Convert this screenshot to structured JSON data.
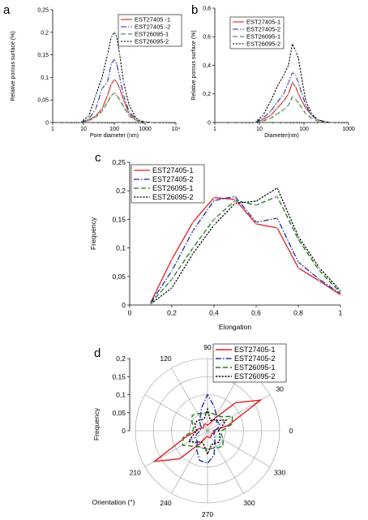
{
  "colors": {
    "s1": "#e02020",
    "s2": "#1f2fb0",
    "s3": "#1e7a1e",
    "s4": "#000000"
  },
  "panels": {
    "a": "a",
    "b": "b",
    "c": "c",
    "d": "d"
  },
  "chart_data": [
    {
      "id": "a",
      "type": "line",
      "xscale": "log",
      "xlabel": "Pore diameter (nm)",
      "ylabel": "Relative porous surface (%)",
      "xlim": [
        1,
        10000
      ],
      "ylim": [
        0,
        0.25
      ],
      "xticks": [
        "1",
        "10",
        "100",
        "1000",
        "10⁴"
      ],
      "yticks": [
        "0",
        "0,05",
        "0,1",
        "0,15",
        "0,2",
        "0,25"
      ],
      "series": [
        {
          "name": "EST27405 -1",
          "x": [
            8,
            15,
            25,
            40,
            60,
            80,
            100,
            120,
            150,
            200,
            300,
            500,
            700,
            1000,
            1500
          ],
          "y": [
            0,
            0.005,
            0.015,
            0.03,
            0.06,
            0.085,
            0.095,
            0.09,
            0.075,
            0.05,
            0.02,
            0.005,
            0.002,
            0.001,
            0
          ]
        },
        {
          "name": "EST27405 -2",
          "x": [
            8,
            15,
            25,
            40,
            60,
            80,
            100,
            120,
            150,
            200,
            300,
            500,
            700,
            1000,
            1500
          ],
          "y": [
            0,
            0.008,
            0.03,
            0.075,
            0.09,
            0.13,
            0.14,
            0.13,
            0.1,
            0.06,
            0.025,
            0.008,
            0.003,
            0.001,
            0
          ]
        },
        {
          "name": "EST26095-1",
          "x": [
            8,
            15,
            25,
            40,
            60,
            80,
            100,
            120,
            150,
            200,
            300,
            500,
            700,
            1000,
            1500
          ],
          "y": [
            0,
            0.004,
            0.012,
            0.025,
            0.045,
            0.06,
            0.065,
            0.06,
            0.05,
            0.035,
            0.015,
            0.005,
            0.002,
            0.001,
            0
          ]
        },
        {
          "name": "EST26095-2",
          "x": [
            8,
            15,
            25,
            40,
            60,
            80,
            100,
            120,
            150,
            200,
            300,
            500,
            700,
            1000,
            1500
          ],
          "y": [
            0,
            0.015,
            0.06,
            0.1,
            0.15,
            0.19,
            0.2,
            0.19,
            0.15,
            0.09,
            0.04,
            0.01,
            0.004,
            0.001,
            0
          ]
        }
      ],
      "legend": "top-right"
    },
    {
      "id": "b",
      "type": "line",
      "xscale": "log",
      "xlabel": "Diameter(nm)",
      "ylabel": "Relative porous surface (%)",
      "xlim": [
        1,
        1000
      ],
      "ylim": [
        0,
        0.8
      ],
      "xticks": [
        "1",
        "10",
        "100",
        "1000"
      ],
      "yticks": [
        "0",
        "0,2",
        "0,4",
        "0,6",
        "0,8"
      ],
      "series": [
        {
          "name": "EST27405-1",
          "x": [
            8,
            12,
            18,
            25,
            35,
            45,
            55,
            65,
            75,
            90,
            110,
            150,
            200,
            300,
            400
          ],
          "y": [
            0,
            0.02,
            0.05,
            0.1,
            0.15,
            0.2,
            0.28,
            0.25,
            0.2,
            0.15,
            0.1,
            0.05,
            0.02,
            0.005,
            0
          ]
        },
        {
          "name": "EST27405-2",
          "x": [
            8,
            12,
            18,
            25,
            35,
            45,
            55,
            65,
            75,
            90,
            110,
            150,
            200,
            300,
            400
          ],
          "y": [
            0,
            0.03,
            0.08,
            0.14,
            0.2,
            0.28,
            0.35,
            0.33,
            0.28,
            0.2,
            0.12,
            0.05,
            0.02,
            0.005,
            0
          ]
        },
        {
          "name": "EST26095-1",
          "x": [
            8,
            12,
            18,
            25,
            35,
            45,
            55,
            65,
            75,
            90,
            110,
            150,
            200,
            300,
            400
          ],
          "y": [
            0,
            0.01,
            0.03,
            0.06,
            0.09,
            0.12,
            0.18,
            0.16,
            0.14,
            0.1,
            0.06,
            0.03,
            0.01,
            0.003,
            0
          ]
        },
        {
          "name": "EST26095-2",
          "x": [
            8,
            12,
            18,
            25,
            35,
            45,
            55,
            65,
            75,
            90,
            110,
            150,
            200,
            300,
            400
          ],
          "y": [
            0,
            0.05,
            0.15,
            0.25,
            0.33,
            0.4,
            0.55,
            0.5,
            0.45,
            0.3,
            0.15,
            0.06,
            0.02,
            0.005,
            0
          ]
        }
      ],
      "legend": "top-left"
    },
    {
      "id": "c",
      "type": "line",
      "xlabel": "Elongation",
      "ylabel": "Frequency",
      "xlim": [
        0,
        1
      ],
      "ylim": [
        0,
        0.25
      ],
      "xticks": [
        "0",
        "0,2",
        "0,4",
        "0,6",
        "0,8",
        "1"
      ],
      "yticks": [
        "0",
        "0,05",
        "0,1",
        "0,15",
        "0,2",
        "0,25"
      ],
      "series": [
        {
          "name": "EST27405-1",
          "x": [
            0.1,
            0.2,
            0.3,
            0.4,
            0.5,
            0.6,
            0.7,
            0.8,
            0.9,
            1.0
          ],
          "y": [
            0.005,
            0.08,
            0.145,
            0.188,
            0.185,
            0.142,
            0.135,
            0.065,
            0.042,
            0.018
          ]
        },
        {
          "name": "EST27405-2",
          "x": [
            0.1,
            0.2,
            0.3,
            0.4,
            0.5,
            0.6,
            0.7,
            0.8,
            0.9,
            1.0
          ],
          "y": [
            0.004,
            0.06,
            0.13,
            0.183,
            0.19,
            0.145,
            0.152,
            0.075,
            0.045,
            0.02
          ]
        },
        {
          "name": "EST26095-1",
          "x": [
            0.1,
            0.2,
            0.3,
            0.4,
            0.5,
            0.6,
            0.7,
            0.8,
            0.9,
            1.0
          ],
          "y": [
            0.003,
            0.045,
            0.1,
            0.15,
            0.183,
            0.175,
            0.19,
            0.115,
            0.06,
            0.022
          ]
        },
        {
          "name": "EST26095-2",
          "x": [
            0.1,
            0.2,
            0.3,
            0.4,
            0.5,
            0.6,
            0.7,
            0.8,
            0.9,
            1.0
          ],
          "y": [
            0.002,
            0.03,
            0.09,
            0.14,
            0.178,
            0.182,
            0.205,
            0.12,
            0.065,
            0.025
          ]
        }
      ],
      "legend": "top-left"
    },
    {
      "id": "d",
      "type": "polar-line",
      "xlabel": "Orientation (°)",
      "ylabel": "Frequency",
      "rlim": [
        0,
        0.2
      ],
      "rticks": [
        "0",
        "0,05",
        "0,1",
        "0,15",
        "0,2"
      ],
      "angle_ticks": [
        "0",
        "30",
        "60",
        "90",
        "120",
        "150",
        "180",
        "210",
        "240",
        "270",
        "300",
        "330"
      ],
      "angle_label_values": [
        0,
        30,
        90,
        120,
        210,
        240,
        270,
        300,
        330
      ],
      "series": [
        {
          "name": "EST27405-1",
          "angles": [
            0,
            15,
            30,
            45,
            60,
            75,
            90,
            105,
            120,
            135,
            150,
            165,
            180,
            195,
            210,
            225,
            240,
            255,
            270,
            285,
            300,
            315,
            330,
            345,
            360
          ],
          "values": [
            0.015,
            0.06,
            0.17,
            0.11,
            0.04,
            0.02,
            0.015,
            0.02,
            0.02,
            0.015,
            0.015,
            0.025,
            0.03,
            0.06,
            0.17,
            0.11,
            0.04,
            0.02,
            0.015,
            0.02,
            0.02,
            0.015,
            0.015,
            0.02,
            0.015
          ]
        },
        {
          "name": "EST27405-2",
          "angles": [
            0,
            15,
            30,
            45,
            60,
            75,
            90,
            105,
            120,
            135,
            150,
            165,
            180,
            195,
            210,
            225,
            240,
            255,
            270,
            285,
            300,
            315,
            330,
            345,
            360
          ],
          "values": [
            0.02,
            0.03,
            0.04,
            0.035,
            0.05,
            0.07,
            0.1,
            0.065,
            0.04,
            0.03,
            0.02,
            0.02,
            0.02,
            0.03,
            0.04,
            0.04,
            0.06,
            0.085,
            0.09,
            0.07,
            0.04,
            0.03,
            0.02,
            0.02,
            0.02
          ]
        },
        {
          "name": "EST26095-1",
          "angles": [
            0,
            15,
            30,
            45,
            60,
            75,
            90,
            105,
            120,
            135,
            150,
            165,
            180,
            195,
            210,
            225,
            240,
            255,
            270,
            285,
            300,
            315,
            330,
            345,
            360
          ],
          "values": [
            0.04,
            0.07,
            0.08,
            0.055,
            0.05,
            0.05,
            0.05,
            0.05,
            0.055,
            0.06,
            0.05,
            0.04,
            0.04,
            0.07,
            0.08,
            0.06,
            0.05,
            0.05,
            0.05,
            0.05,
            0.055,
            0.06,
            0.05,
            0.04,
            0.04
          ]
        },
        {
          "name": "EST26095-2",
          "angles": [
            0,
            15,
            30,
            45,
            60,
            75,
            90,
            105,
            120,
            135,
            150,
            165,
            180,
            195,
            210,
            225,
            240,
            255,
            270,
            285,
            300,
            315,
            330,
            345,
            360
          ],
          "values": [
            0.03,
            0.04,
            0.06,
            0.04,
            0.035,
            0.03,
            0.06,
            0.035,
            0.035,
            0.04,
            0.04,
            0.035,
            0.03,
            0.04,
            0.06,
            0.045,
            0.035,
            0.04,
            0.065,
            0.04,
            0.04,
            0.045,
            0.04,
            0.035,
            0.03
          ]
        }
      ],
      "legend": "top-right"
    }
  ]
}
